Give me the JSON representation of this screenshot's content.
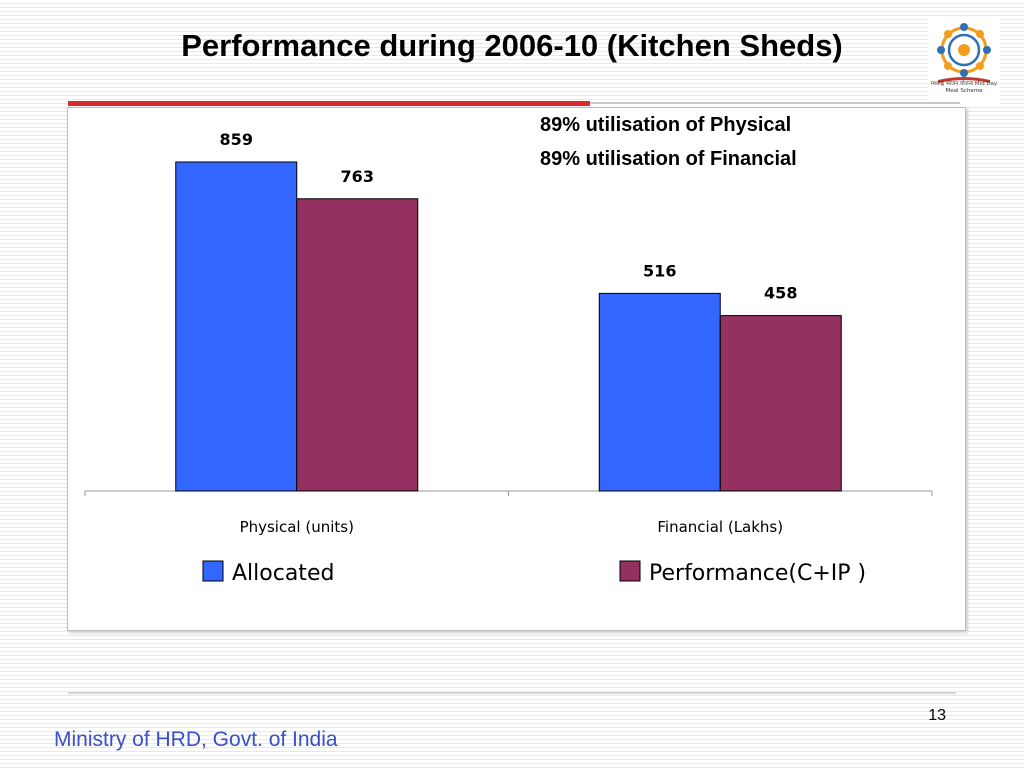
{
  "slide": {
    "title": "Performance during 2006-10 (Kitchen Sheds)",
    "page_number": "13",
    "footer": "Ministry of HRD, Govt. of India",
    "annotations": [
      "89% utilisation of Physical",
      "89% utilisation of Financial"
    ],
    "logo_caption": "मध्याह्न भोजन योजना Mid Day Meal Scheme",
    "logo_icon": "mid-day-meal-logo-icon"
  },
  "chart_data": {
    "type": "bar",
    "title": "",
    "xlabel": "",
    "ylabel": "",
    "categories": [
      "Physical (units)",
      "Financial (Lakhs)"
    ],
    "series": [
      {
        "name": "Allocated",
        "values": [
          859,
          516
        ],
        "color": "#3366ff"
      },
      {
        "name": "Performance(C+IP )",
        "values": [
          763,
          458
        ],
        "color": "#953160"
      }
    ],
    "ylim": [
      0,
      1000
    ],
    "grid": false,
    "legend": "bottom"
  }
}
